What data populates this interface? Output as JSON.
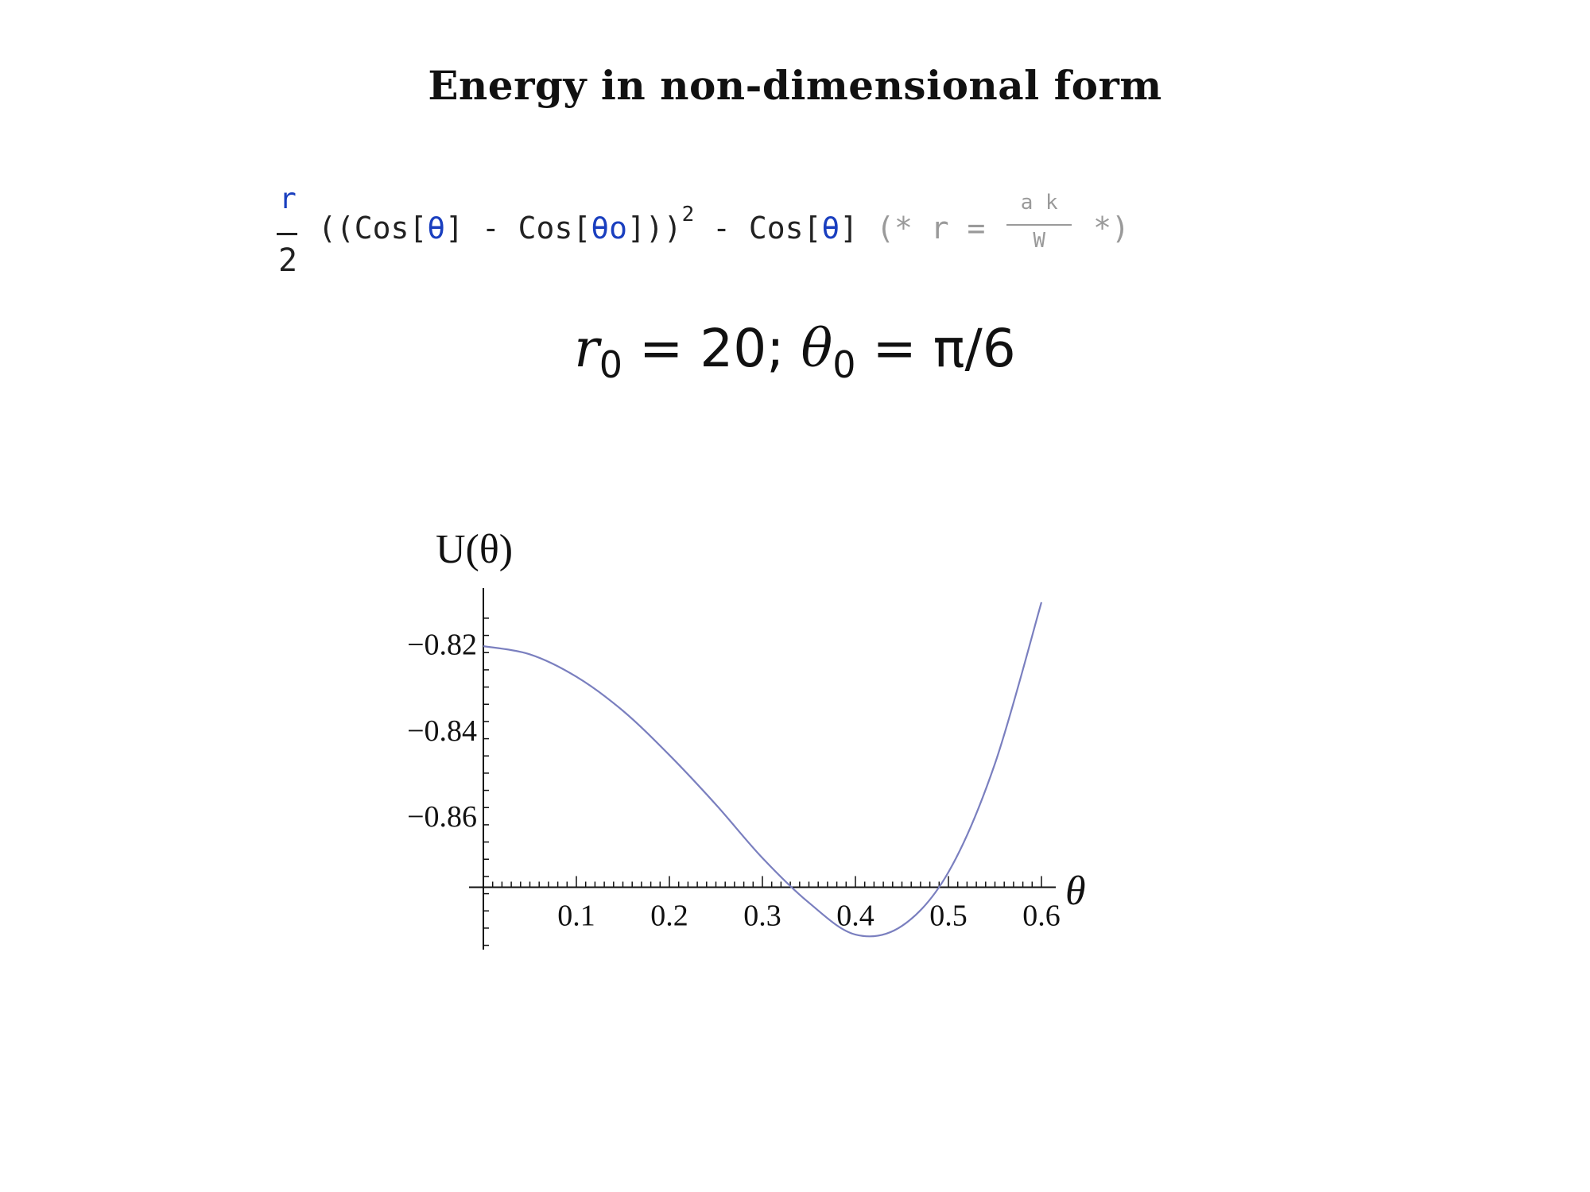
{
  "slide": {
    "title": "Energy in non-dimensional form"
  },
  "formula": {
    "numerator": "r",
    "denominator": "2",
    "open": "((Cos[",
    "theta1": "θ",
    "minus": "] - Cos[",
    "theta0": "θo",
    "close": "]))",
    "power": "2",
    "minus2": " - Cos[",
    "theta2": "θ",
    "close2": "] ",
    "comment_open": "(* r = ",
    "comment_num": "a k",
    "comment_den": "W",
    "comment_close": " *)"
  },
  "params": {
    "r_symbol": "r",
    "r_sub": "0",
    "r_rest": " = 20; ",
    "theta_symbol": "θ",
    "theta_sub": "0",
    "theta_rest": " = π/6"
  },
  "colors": {
    "curve": "#7a7fbf",
    "axis": "#111111",
    "code_blue": "#1a3fbf",
    "comment_gray": "#9a9a9a"
  },
  "chart_data": {
    "type": "line",
    "ylabel": "U(θ)",
    "xlabel": "θ",
    "xlim": [
      0,
      0.6
    ],
    "ylim": [
      -0.891,
      -0.807
    ],
    "x_ticks": [
      0.1,
      0.2,
      0.3,
      0.4,
      0.5,
      0.6
    ],
    "x_tick_labels": [
      "0.1",
      "0.2",
      "0.3",
      "0.4",
      "0.5",
      "0.6"
    ],
    "y_ticks": [
      -0.82,
      -0.84,
      -0.86
    ],
    "y_tick_labels": [
      "−0.82",
      "−0.84",
      "−0.86"
    ],
    "x_axis_crossing": -0.8765,
    "grid": false,
    "series": [
      {
        "x": [
          0,
          0.05,
          0.1,
          0.15,
          0.2,
          0.25,
          0.3,
          0.35,
          0.4,
          0.45,
          0.5,
          0.55,
          0.6
        ],
        "y": [
          -0.8205,
          -0.8224,
          -0.8276,
          -0.8355,
          -0.8458,
          -0.8573,
          -0.8697,
          -0.8801,
          -0.8875,
          -0.8855,
          -0.873,
          -0.8478,
          -0.8103
        ]
      }
    ]
  }
}
